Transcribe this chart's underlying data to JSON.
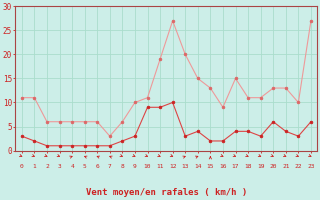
{
  "hours": [
    0,
    1,
    2,
    3,
    4,
    5,
    6,
    7,
    8,
    9,
    10,
    11,
    12,
    13,
    14,
    15,
    16,
    17,
    18,
    19,
    20,
    21,
    22,
    23
  ],
  "vent_moyen": [
    3,
    2,
    1,
    1,
    1,
    1,
    1,
    1,
    2,
    3,
    9,
    9,
    10,
    3,
    4,
    2,
    2,
    4,
    4,
    3,
    6,
    4,
    3,
    6
  ],
  "rafales": [
    11,
    11,
    6,
    6,
    6,
    6,
    6,
    3,
    6,
    10,
    11,
    19,
    27,
    20,
    15,
    13,
    9,
    15,
    11,
    11,
    13,
    13,
    10,
    27
  ],
  "wind_dirs": [
    45,
    45,
    45,
    45,
    135,
    225,
    225,
    225,
    45,
    45,
    45,
    45,
    45,
    135,
    135,
    180,
    45,
    45,
    45,
    45,
    45,
    45,
    45,
    45
  ],
  "line_color_moyen": "#dd4444",
  "line_color_rafales": "#ee9999",
  "marker_color_moyen": "#cc2222",
  "marker_color_rafales": "#dd6666",
  "bg_color": "#cceee8",
  "grid_color": "#aaddcc",
  "xlabel": "Vent moyen/en rafales ( km/h )",
  "xlabel_color": "#cc2222",
  "tick_color": "#cc2222",
  "spine_color": "#aa4444",
  "ylim": [
    0,
    30
  ],
  "yticks": [
    0,
    5,
    10,
    15,
    20,
    25,
    30
  ]
}
